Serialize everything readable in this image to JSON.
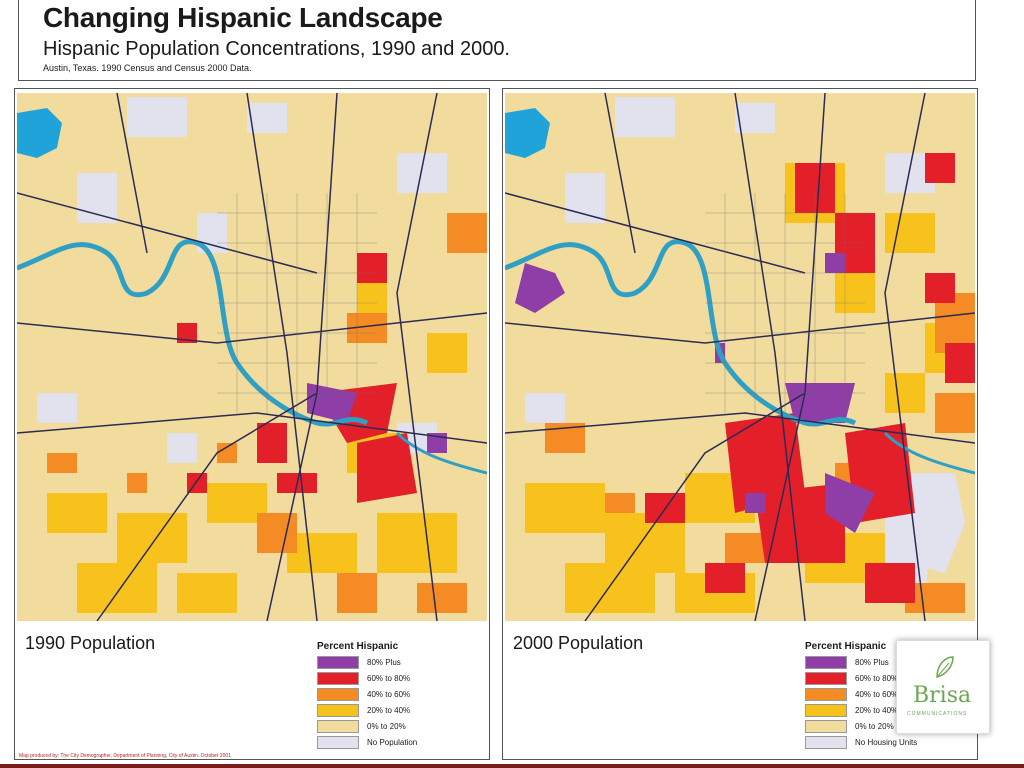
{
  "header": {
    "title": "Changing Hispanic Landscape",
    "subtitle": "Hispanic Population Concentrations, 1990 and 2000.",
    "source": "Austin, Texas.  1990 Census and Census 2000 Data."
  },
  "panels": [
    {
      "year_label": "1990 Population",
      "legend_title": "Percent Hispanic",
      "legend": [
        {
          "label": "80% Plus",
          "color": "#8e3ea6"
        },
        {
          "label": "60% to 80%",
          "color": "#e3202a"
        },
        {
          "label": "40% to 60%",
          "color": "#f58b24"
        },
        {
          "label": "20% to 40%",
          "color": "#f8c21c"
        },
        {
          "label": "0% to 20%",
          "color": "#f1dc9e"
        },
        {
          "label": "No Population",
          "color": "#e2e2ee"
        }
      ],
      "credit": "Map produced by: The City Demographer, Department of Planning, City of Austin.  October 2001"
    },
    {
      "year_label": "2000 Population",
      "legend_title": "Percent Hispanic",
      "legend": [
        {
          "label": "80% Plus",
          "color": "#8e3ea6"
        },
        {
          "label": "60% to 80%",
          "color": "#e3202a"
        },
        {
          "label": "40% to 60%",
          "color": "#f58b24"
        },
        {
          "label": "20% to 40%",
          "color": "#f8c21c"
        },
        {
          "label": "0% to 20%",
          "color": "#f1dc9e"
        },
        {
          "label": "No Housing Units",
          "color": "#e2e2ee"
        }
      ]
    }
  ],
  "logo": {
    "name": "Brisa",
    "tagline": "COMMUNICATIONS"
  },
  "colors": {
    "river": "#2f9fc4",
    "lake": "#1fa3d8",
    "road": "#2b2b55",
    "base": "#f1dc9e"
  }
}
